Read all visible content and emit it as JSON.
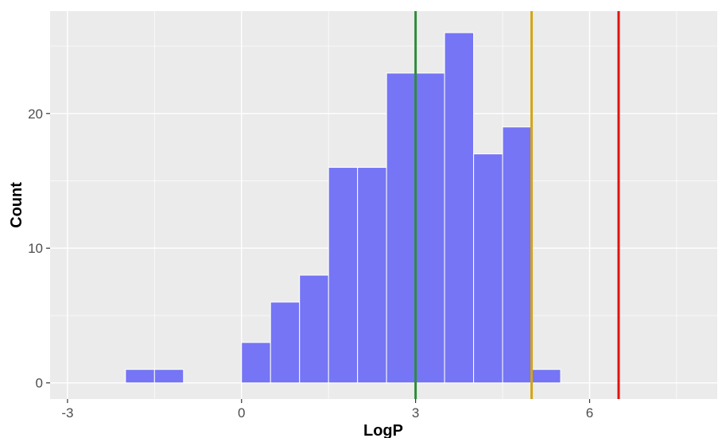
{
  "chart_data": {
    "type": "bar",
    "subtype": "histogram",
    "xlabel": "LogP",
    "ylabel": "Count",
    "xlim": [
      -3.3,
      8.2
    ],
    "ylim": [
      -1.2,
      27.6
    ],
    "x_ticks": [
      -3,
      0,
      3,
      6
    ],
    "y_ticks": [
      0,
      10,
      20
    ],
    "grid": true,
    "bin_width": 0.5,
    "bins": [
      {
        "start": -2.0,
        "end": -1.5,
        "count": 1
      },
      {
        "start": -1.5,
        "end": -1.0,
        "count": 1
      },
      {
        "start": 0.0,
        "end": 0.5,
        "count": 3
      },
      {
        "start": 0.5,
        "end": 1.0,
        "count": 6
      },
      {
        "start": 1.0,
        "end": 1.5,
        "count": 8
      },
      {
        "start": 1.5,
        "end": 2.0,
        "count": 16
      },
      {
        "start": 2.0,
        "end": 2.5,
        "count": 16
      },
      {
        "start": 2.5,
        "end": 3.0,
        "count": 23
      },
      {
        "start": 3.0,
        "end": 3.5,
        "count": 23
      },
      {
        "start": 3.5,
        "end": 4.0,
        "count": 26
      },
      {
        "start": 4.0,
        "end": 4.5,
        "count": 17
      },
      {
        "start": 4.5,
        "end": 5.0,
        "count": 19
      },
      {
        "start": 5.0,
        "end": 5.5,
        "count": 1
      }
    ],
    "reference_lines": [
      {
        "x": 3.0,
        "color": "#2e8b3d"
      },
      {
        "x": 5.0,
        "color": "#d4a514"
      },
      {
        "x": 6.5,
        "color": "#e0120f"
      }
    ]
  },
  "colors": {
    "bar_fill": "#7575f5",
    "bar_stroke": "#ffffff",
    "panel_background": "#ebebeb",
    "grid": "#ffffff"
  }
}
